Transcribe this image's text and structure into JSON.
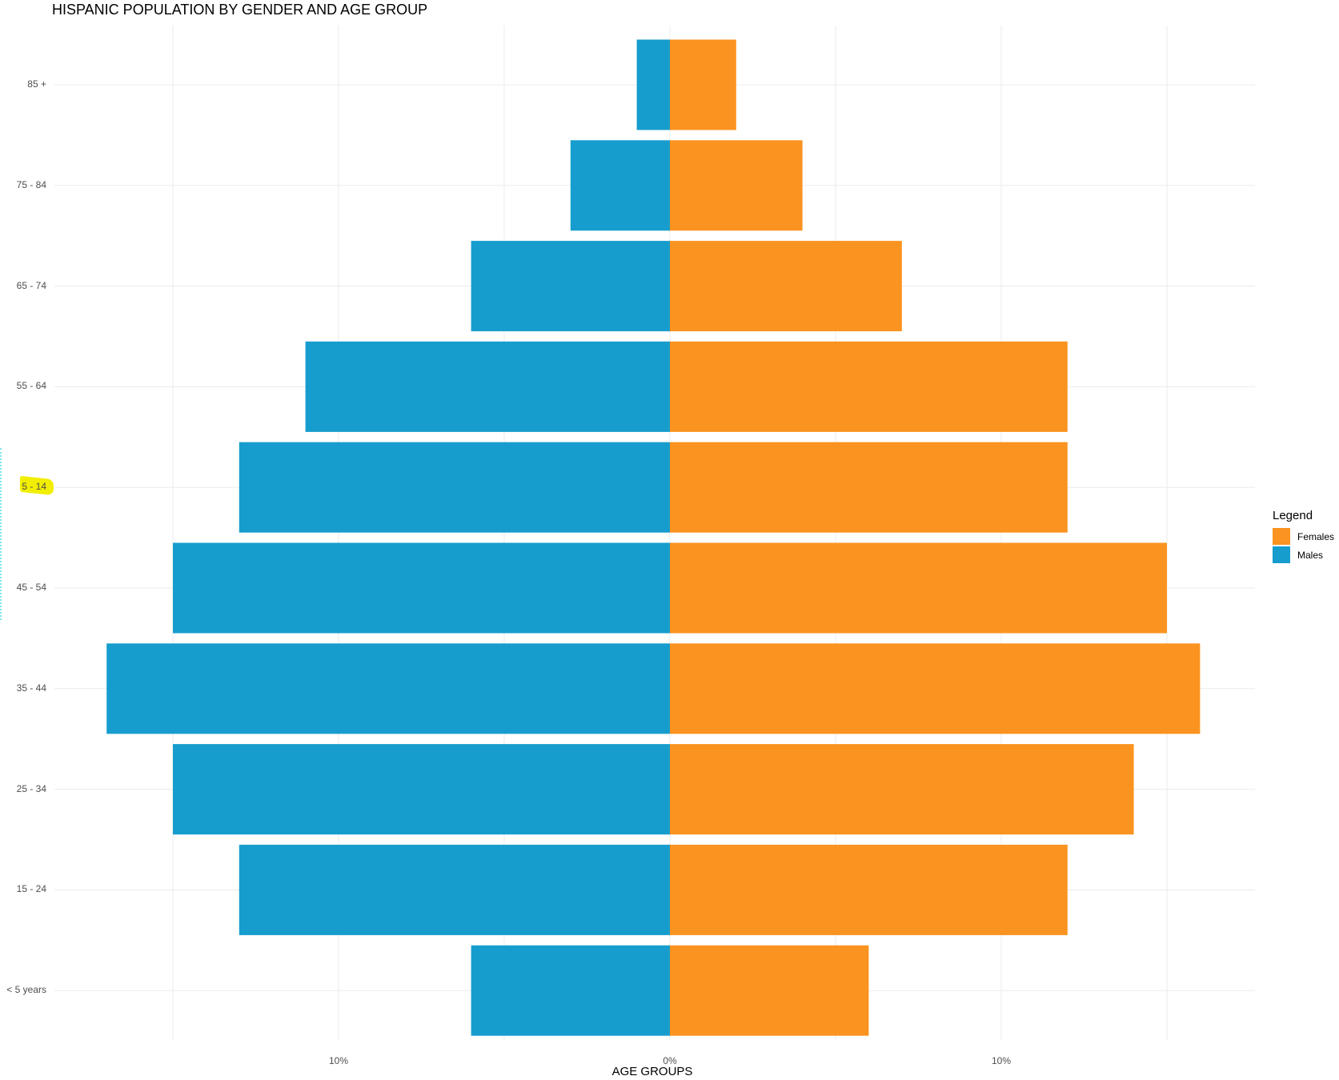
{
  "chart_data": {
    "type": "bar",
    "orientation": "horizontal",
    "title": "HISPANIC POPULATION BY GENDER AND AGE GROUP",
    "xlabel": "AGE GROUPS",
    "ylabel": "",
    "categories": [
      "< 5 years",
      "15 - 24",
      "25 - 34",
      "35 - 44",
      "45 - 54",
      "5 - 14",
      "55 - 64",
      "65 - 74",
      "75 - 84",
      "85 +"
    ],
    "series": [
      {
        "name": "Females",
        "color": "#fa9320",
        "values": [
          6,
          12,
          14,
          16,
          15,
          12,
          12,
          7,
          4,
          2
        ]
      },
      {
        "name": "Males",
        "color": "#169dce",
        "values": [
          -6,
          -13,
          -15,
          -17,
          -15,
          -13,
          -11,
          -6,
          -3,
          -1
        ]
      }
    ],
    "xticks": [
      "10%",
      "0%",
      "10%"
    ],
    "xtick_values": [
      -10,
      0,
      10
    ],
    "xlim": [
      -17.6,
      17.7
    ],
    "grid": true,
    "legend": {
      "title": "Legend",
      "position": "right",
      "entries": [
        "Females",
        "Males"
      ]
    },
    "annotations": [
      "yellow highlight over '5 - 14' tick label"
    ]
  },
  "title": "HISPANIC POPULATION BY GENDER AND AGE GROUP",
  "xaxis_title": "AGE GROUPS",
  "xticks": [
    {
      "label": "10%",
      "value": -10
    },
    {
      "label": "0%",
      "value": 0
    },
    {
      "label": "10%",
      "value": 10
    }
  ],
  "legend": {
    "title": "Legend",
    "items": [
      {
        "label": "Females",
        "color": "#fa9320"
      },
      {
        "label": "Males",
        "color": "#169dce"
      }
    ]
  },
  "ylabels": [
    "85 +",
    "75  -  84",
    "65  -  74",
    "55  -  64",
    "5 - 14",
    "45  -  54",
    "35  -  44",
    "25  -  34",
    "15  -  24",
    "<  5 years"
  ],
  "colors": {
    "females": "#fa9320",
    "males": "#169dce",
    "grid": "#ebebeb",
    "highlight": "#f2ee00"
  }
}
